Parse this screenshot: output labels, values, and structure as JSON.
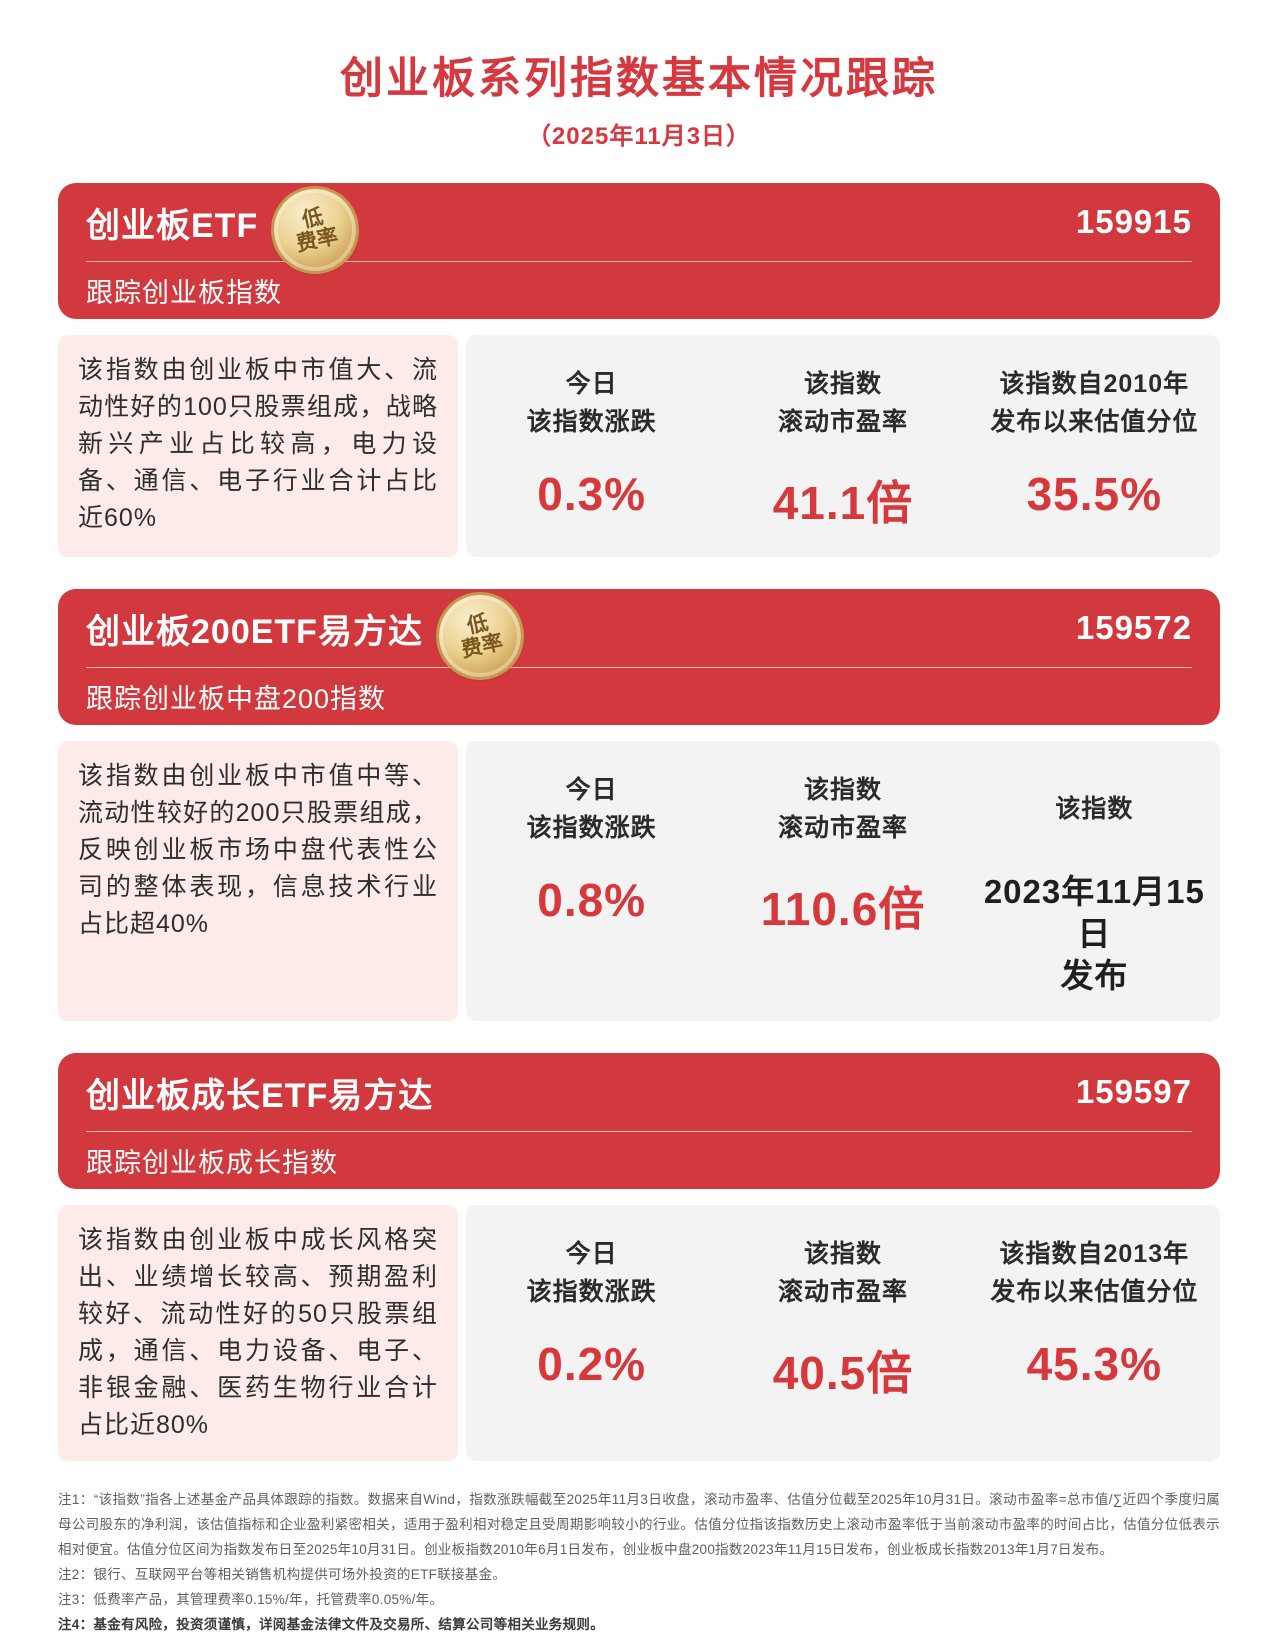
{
  "page": {
    "title": "创业板系列指数基本情况跟踪",
    "date": "（2025年11月3日）",
    "accent_red": "#d5383f",
    "banner_red": "#d2393e",
    "pink_bg": "#fdebe9",
    "gray_bg": "#f3f3f3",
    "gold_badge": "#ecd292"
  },
  "badge": {
    "line1": "低",
    "line2": "费率"
  },
  "cards": [
    {
      "title": "创业板ETF",
      "code": "159915",
      "subtitle": "跟踪创业板指数",
      "description": "该指数由创业板中市值大、流动性好的100只股票组成，战略新兴产业占比较高，电力设备、通信、电子行业合计占比近60%",
      "stats": [
        {
          "label1": "今日",
          "label2": "该指数涨跌",
          "value": "0.3%"
        },
        {
          "label1": "该指数",
          "label2": "滚动市盈率",
          "value": "41.1倍"
        },
        {
          "label1": "该指数自2010年",
          "label2": "发布以来估值分位",
          "value": "35.5%"
        }
      ]
    },
    {
      "title": "创业板200ETF易方达",
      "code": "159572",
      "subtitle": "跟踪创业板中盘200指数",
      "description": "该指数由创业板中市值中等、流动性较好的200只股票组成，反映创业板市场中盘代表性公司的整体表现，信息技术行业占比超40%",
      "stats": [
        {
          "label1": "今日",
          "label2": "该指数涨跌",
          "value": "0.8%"
        },
        {
          "label1": "该指数",
          "label2": "滚动市盈率",
          "value": "110.6倍"
        },
        {
          "label1": "该指数",
          "label2": "",
          "value": "2023年11月15日",
          "value2": "发布"
        }
      ]
    },
    {
      "title": "创业板成长ETF易方达",
      "code": "159597",
      "subtitle": "跟踪创业板成长指数",
      "description": "该指数由创业板中成长风格突出、业绩增长较高、预期盈利较好、流动性好的50只股票组成，通信、电力设备、电子、非银金融、医药生物行业合计占比近80%",
      "stats": [
        {
          "label1": "今日",
          "label2": "该指数涨跌",
          "value": "0.2%"
        },
        {
          "label1": "该指数",
          "label2": "滚动市盈率",
          "value": "40.5倍"
        },
        {
          "label1": "该指数自2013年",
          "label2": "发布以来估值分位",
          "value": "45.3%"
        }
      ]
    }
  ],
  "notes": [
    "注1：“该指数”指各上述基金产品具体跟踪的指数。数据来自Wind，指数涨跌幅截至2025年11月3日收盘，滚动市盈率、估值分位截至2025年10月31日。滚动市盈率=总市值/∑近四个季度归属母公司股东的净利润，该估值指标和企业盈利紧密相关，适用于盈利相对稳定且受周期影响较小的行业。估值分位指该指数历史上滚动市盈率低于当前滚动市盈率的时间占比，估值分位低表示相对便宜。估值分位区间为指数发布日至2025年10月31日。创业板指数2010年6月1日发布，创业板中盘200指数2023年11月15日发布，创业板成长指数2013年1月7日发布。",
    "注2：银行、互联网平台等相关销售机构提供可场外投资的ETF联接基金。",
    "注3：低费率产品，其管理费率0.15%/年，托管费率0.05%/年。",
    "注4：基金有风险，投资须谨慎，详阅基金法律文件及交易所、结算公司等相关业务规则。"
  ]
}
